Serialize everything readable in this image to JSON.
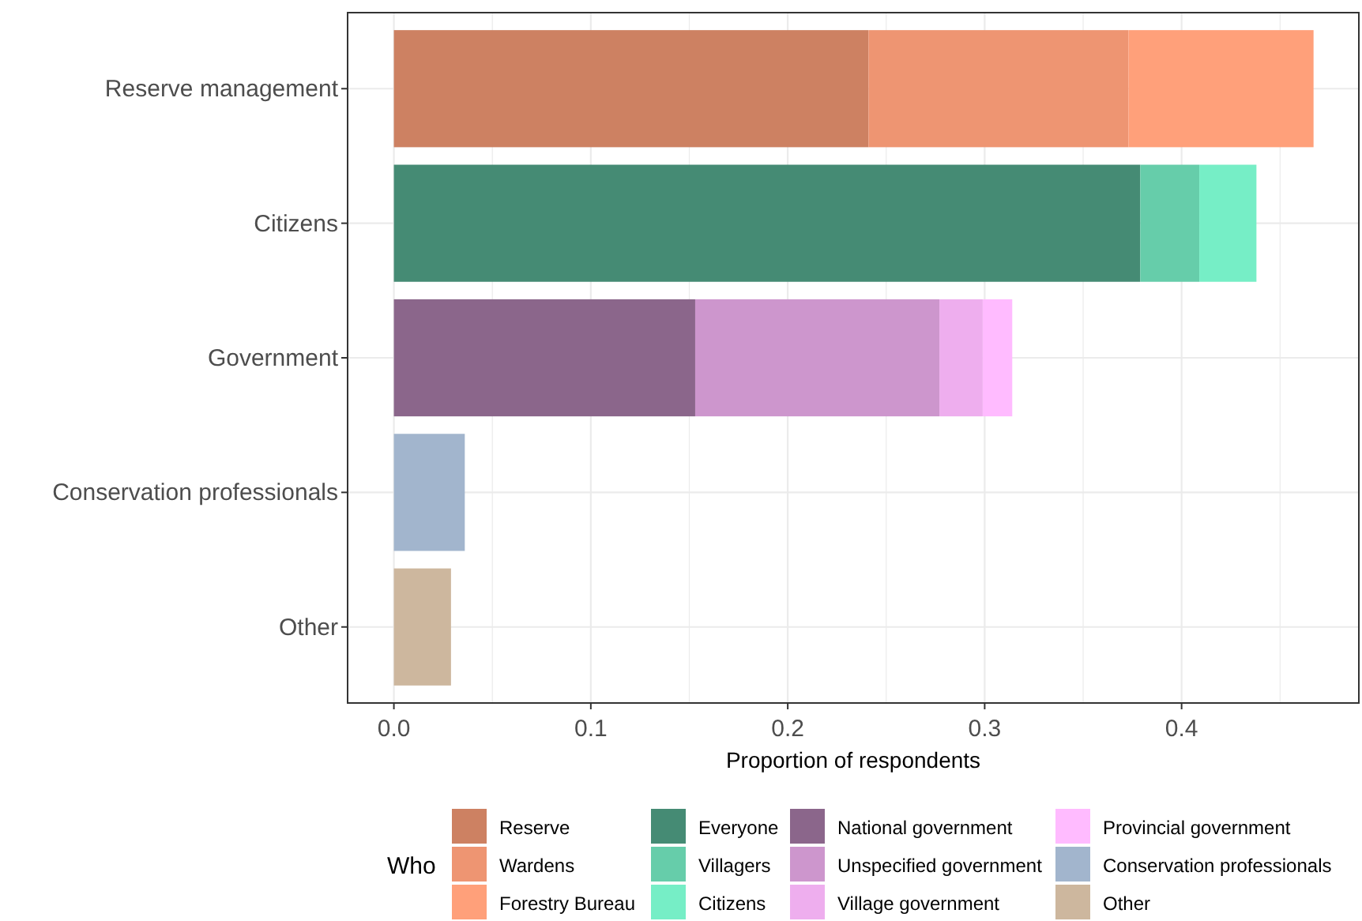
{
  "chart_data": {
    "type": "bar",
    "orientation": "horizontal",
    "stacked": true,
    "xlabel": "Proportion of respondents",
    "legend_title": "Who",
    "legend": "bottom",
    "grid": true,
    "categories": [
      "Reserve management",
      "Citizens",
      "Government",
      "Conservation professionals",
      "Other"
    ],
    "xlim": [
      -0.0235,
      0.49
    ],
    "xticks": [
      {
        "value": 0,
        "label": "0.0"
      },
      0.1,
      0.2,
      0.3,
      0.4,
      {
        "value": 0.05,
        "label": null
      },
      {
        "value": 0.15,
        "label": null
      },
      {
        "value": 0.25,
        "label": null
      },
      {
        "value": 0.35,
        "label": null
      },
      {
        "value": 0.45,
        "label": null
      }
    ],
    "series": [
      {
        "name": "Reserve",
        "color": "#cd8162",
        "values": [
          0.241,
          null,
          null,
          null,
          null
        ]
      },
      {
        "name": "Wardens",
        "color": "#ee9572",
        "values": [
          0.132,
          null,
          null,
          null,
          null
        ]
      },
      {
        "name": "Forestry Bureau",
        "color": "#ffa07a",
        "values": [
          0.094,
          null,
          null,
          null,
          null
        ]
      },
      {
        "name": "Everyone",
        "color": "#458b74",
        "values": [
          null,
          0.379,
          null,
          null,
          null
        ]
      },
      {
        "name": "Villagers",
        "color": "#66cdaa",
        "values": [
          null,
          0.03,
          null,
          null,
          null
        ]
      },
      {
        "name": "Citizens",
        "color": "#76eec6",
        "values": [
          null,
          0.029,
          null,
          null,
          null
        ]
      },
      {
        "name": "National government",
        "color": "#8b668b",
        "values": [
          null,
          null,
          0.153,
          null,
          null
        ]
      },
      {
        "name": "Unspecified government",
        "color": "#cd96cd",
        "values": [
          null,
          null,
          0.124,
          null,
          null
        ]
      },
      {
        "name": "Village government",
        "color": "#eeaeee",
        "values": [
          null,
          null,
          0.022,
          null,
          null
        ]
      },
      {
        "name": "Provincial government",
        "color": "#ffbbff",
        "values": [
          null,
          null,
          0.015,
          null,
          null
        ]
      },
      {
        "name": "Conservation professionals",
        "color": "#a2b5cd",
        "values": [
          null,
          null,
          null,
          0.036,
          null
        ]
      },
      {
        "name": "Other",
        "color": "#cdb79e",
        "values": [
          null,
          null,
          null,
          null,
          0.029
        ]
      }
    ]
  }
}
